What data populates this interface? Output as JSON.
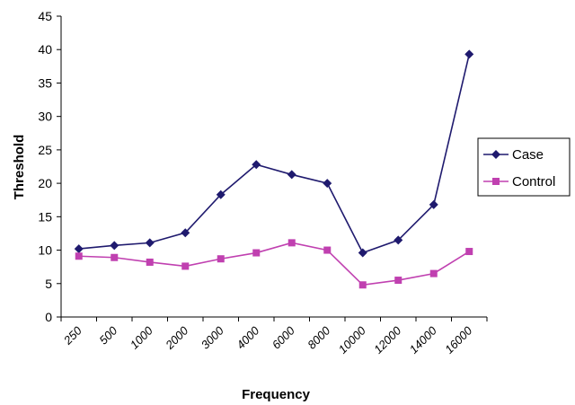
{
  "chart_data": {
    "type": "line",
    "xlabel": "Frequency",
    "ylabel": "Threshold",
    "categories": [
      "250",
      "500",
      "1000",
      "2000",
      "3000",
      "4000",
      "6000",
      "8000",
      "10000",
      "12000",
      "14000",
      "16000"
    ],
    "ylim": [
      0,
      45
    ],
    "yticks": [
      0,
      5,
      10,
      15,
      20,
      25,
      30,
      35,
      40,
      45
    ],
    "grid": false,
    "legend_position": "right",
    "series": [
      {
        "name": "Case",
        "color": "#1f1a6e",
        "marker": "diamond",
        "values": [
          10.2,
          10.7,
          11.1,
          12.6,
          18.3,
          22.8,
          21.3,
          20.0,
          9.6,
          11.5,
          16.8,
          39.3
        ]
      },
      {
        "name": "Control",
        "color": "#c040b0",
        "marker": "square",
        "values": [
          9.1,
          8.9,
          8.2,
          7.6,
          8.7,
          9.6,
          11.1,
          10.0,
          4.8,
          5.5,
          6.5,
          9.8
        ]
      }
    ]
  }
}
